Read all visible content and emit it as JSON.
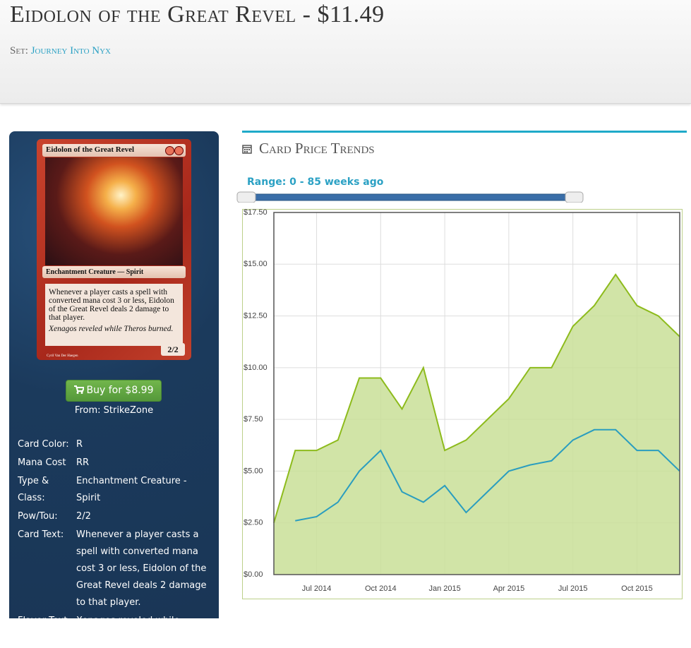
{
  "header": {
    "title": "Eidolon of the Great Revel  - $11.49",
    "set_label": "Set:",
    "set_name": "Journey Into Nyx"
  },
  "card_image": {
    "name": "Eidolon of the Great Revel",
    "type_line": "Enchantment Creature — Spirit",
    "rules_text": "Whenever a player casts a spell with converted mana cost 3 or less, Eidolon of the Great Revel deals 2 damage to that player.",
    "flavor_text": "Xenagos reveled while Theros burned.",
    "power_toughness": "2/2",
    "artist": "Cyril Van Der Haegen"
  },
  "buy_button": "Buy for $8.99",
  "seller": "From: StrikeZone",
  "attributes": [
    [
      "Card Color:",
      "R"
    ],
    [
      "Mana Cost",
      "RR"
    ],
    [
      "Type & Class:",
      "Enchantment Creature - Spirit"
    ],
    [
      "Pow/Tou:",
      "2/2"
    ],
    [
      "Card Text:",
      "Whenever a player casts a spell with converted mana cost 3 or less, Eidolon of the Great Revel deals 2 damage to that player."
    ],
    [
      "Flavor Text:",
      "Xenagos reveled while Theros burned."
    ]
  ],
  "section_title": "Card Price Trends",
  "range_label": "Range: 0 - 85 weeks ago",
  "chart_data": {
    "type": "line",
    "x": [
      "2014-05",
      "2014-06",
      "2014-07",
      "2014-08",
      "2014-09",
      "2014-10",
      "2014-11",
      "2014-12",
      "2015-01",
      "2015-02",
      "2015-03",
      "2015-04",
      "2015-05",
      "2015-06",
      "2015-07",
      "2015-08",
      "2015-09",
      "2015-10",
      "2015-11",
      "2015-12"
    ],
    "series": [
      {
        "color": "#8dbb1c",
        "fill": "#c9df98",
        "area": true,
        "values": [
          2.5,
          6.0,
          6.0,
          6.5,
          9.5,
          9.5,
          8.0,
          10.0,
          6.0,
          6.5,
          7.5,
          8.5,
          10.0,
          10.0,
          12.0,
          13.0,
          14.5,
          13.0,
          12.5,
          11.5
        ]
      },
      {
        "color": "#2a9dbf",
        "values": [
          null,
          2.6,
          2.8,
          3.5,
          5.0,
          6.0,
          4.0,
          3.5,
          4.3,
          3.0,
          4.0,
          5.0,
          5.3,
          5.5,
          6.5,
          7.0,
          7.0,
          6.0,
          6.0,
          5.0
        ]
      }
    ],
    "xticks": [
      {
        "value": "2014-07",
        "label": "Jul 2014"
      },
      {
        "value": "2014-10",
        "label": "Oct 2014"
      },
      {
        "value": "2015-01",
        "label": "Jan 2015"
      },
      {
        "value": "2015-04",
        "label": "Apr 2015"
      },
      {
        "value": "2015-07",
        "label": "Jul 2015"
      },
      {
        "value": "2015-10",
        "label": "Oct 2015"
      }
    ],
    "ylim": [
      0,
      17.5
    ],
    "yticks": [
      {
        "value": 0,
        "label": "$0.00"
      },
      {
        "value": 2.5,
        "label": "$2.50"
      },
      {
        "value": 5,
        "label": "$5.00"
      },
      {
        "value": 7.5,
        "label": "$7.50"
      },
      {
        "value": 10,
        "label": "$10.00"
      },
      {
        "value": 12.5,
        "label": "$12.50"
      },
      {
        "value": 15,
        "label": "$15.00"
      },
      {
        "value": 17.5,
        "label": "$17.50"
      }
    ],
    "grid": true
  }
}
